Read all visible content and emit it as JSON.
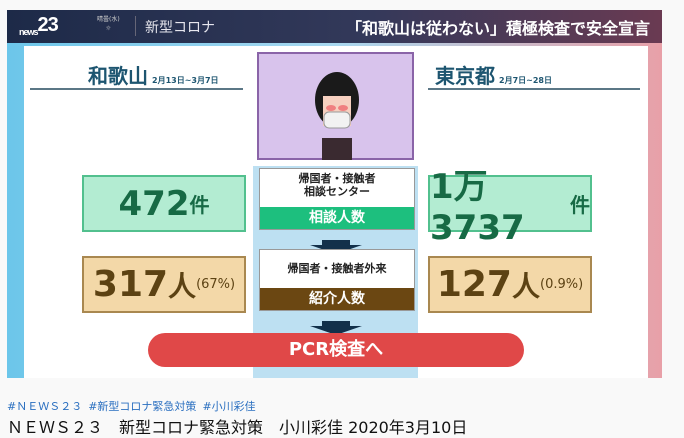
{
  "header": {
    "logo_main": "23",
    "logo_sub": "news",
    "weather": "晴曇(水)",
    "topic": "新型コロナ",
    "headline": "「和歌山は従わない」積極検査で安全宣言"
  },
  "left": {
    "prefecture": "和歌山",
    "period": "2月13日~3月7日",
    "consult_value": "472",
    "consult_unit": "件",
    "referral_value": "317",
    "referral_unit": "人",
    "referral_pct": "(67%)"
  },
  "right": {
    "prefecture": "東京都",
    "period": "2月7日~28日",
    "consult_value": "1万3737",
    "consult_unit": "件",
    "referral_value": "127",
    "referral_unit": "人",
    "referral_pct": "(0.9%)"
  },
  "center": {
    "consult_line1": "帰国者・接触者",
    "consult_line2": "相談センター",
    "consult_band": "相談人数",
    "referral_line": "帰国者・接触者外来",
    "referral_band": "紹介人数",
    "pcr": "PCR検査へ"
  },
  "colors": {
    "consult_band": "#1dbf7e",
    "referral_band": "#6b4712",
    "pcr": "#e04848"
  },
  "page": {
    "tags": [
      "#ＮＥＷＳ２３",
      "#新型コロナ緊急対策",
      "#小川彩佳"
    ],
    "title": "ＮＥＷＳ２３　新型コロナ緊急対策　小川彩佳 2020年3月10日"
  }
}
